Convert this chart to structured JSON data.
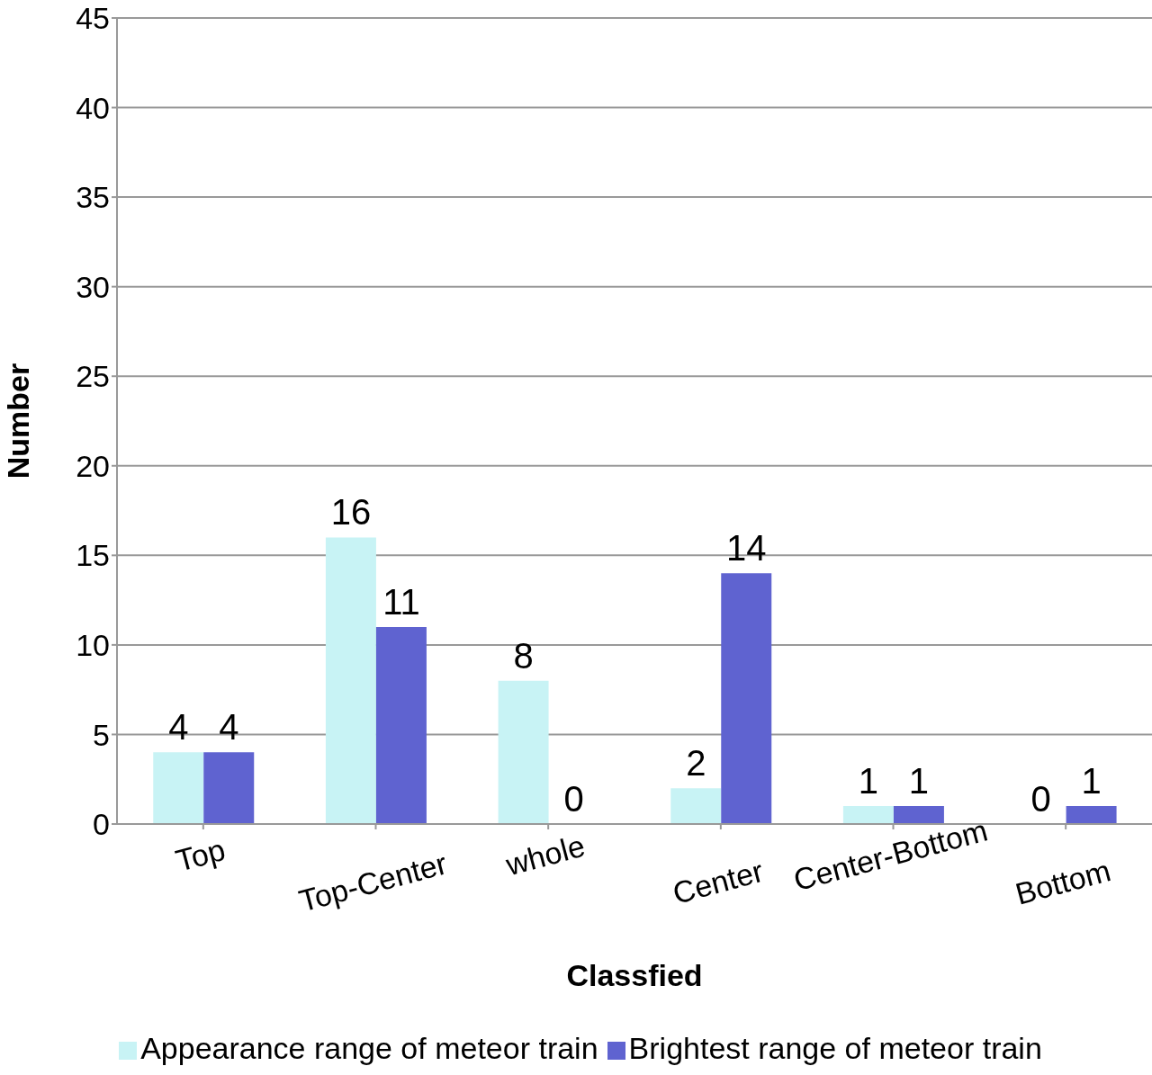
{
  "chart_data": {
    "type": "bar",
    "xlabel": "Classfied",
    "ylabel": "Number",
    "categories": [
      "Top",
      "Top-Center",
      "whole",
      "Center",
      "Center-Bottom",
      "Bottom"
    ],
    "series": [
      {
        "name": "Appearance range of meteor train",
        "color": "#c8f3f5",
        "values": [
          4,
          16,
          8,
          2,
          1,
          0
        ]
      },
      {
        "name": "Brightest range of meteor train",
        "color": "#5f63d0",
        "values": [
          4,
          11,
          0,
          14,
          1,
          1
        ]
      }
    ],
    "ylim": [
      0,
      45
    ],
    "yticks": [
      0,
      5,
      10,
      15,
      20,
      25,
      30,
      35,
      40,
      45
    ],
    "grid": "y",
    "legend": "bottom",
    "data_labels": true
  }
}
